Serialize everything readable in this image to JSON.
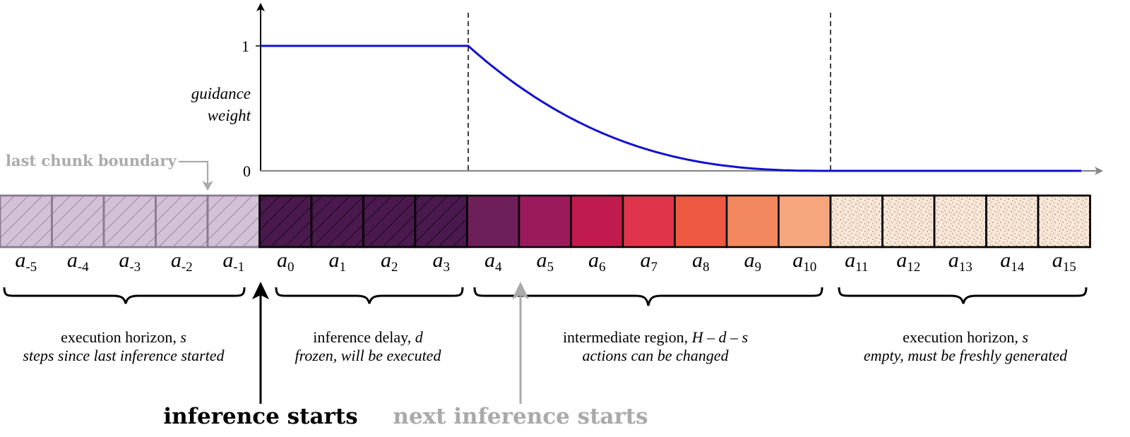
{
  "axis": {
    "y_tick_top": "1",
    "y_tick_bottom": "0",
    "ylabel_line1": "guidance",
    "ylabel_line2": "weight"
  },
  "chart_data": {
    "type": "line",
    "series": [
      {
        "segments": [
          {
            "from_index": 0,
            "to_index": 4,
            "value": 1
          },
          {
            "from_index": 4,
            "to_index": 11,
            "shape": "exponential decay to 0"
          },
          {
            "from_index": 11,
            "to_index": 16,
            "value": 0
          }
        ]
      }
    ],
    "ylim": [
      0,
      1
    ]
  },
  "callout": {
    "last_chunk_boundary": "last chunk boundary"
  },
  "actions": [
    {
      "base": "a",
      "sub": "-5"
    },
    {
      "base": "a",
      "sub": "-4"
    },
    {
      "base": "a",
      "sub": "-3"
    },
    {
      "base": "a",
      "sub": "-2"
    },
    {
      "base": "a",
      "sub": "-1"
    },
    {
      "base": "a",
      "sub": "0"
    },
    {
      "base": "a",
      "sub": "1"
    },
    {
      "base": "a",
      "sub": "2"
    },
    {
      "base": "a",
      "sub": "3"
    },
    {
      "base": "a",
      "sub": "4"
    },
    {
      "base": "a",
      "sub": "5"
    },
    {
      "base": "a",
      "sub": "6"
    },
    {
      "base": "a",
      "sub": "7"
    },
    {
      "base": "a",
      "sub": "8"
    },
    {
      "base": "a",
      "sub": "9"
    },
    {
      "base": "a",
      "sub": "10"
    },
    {
      "base": "a",
      "sub": "11"
    },
    {
      "base": "a",
      "sub": "12"
    },
    {
      "base": "a",
      "sub": "13"
    },
    {
      "base": "a",
      "sub": "14"
    },
    {
      "base": "a",
      "sub": "15"
    }
  ],
  "cell_colors": {
    "past": "#d2c1d7",
    "past_border": "#877a8c",
    "frozen": "#4a1a4e",
    "gradient": [
      "#6e1f5a",
      "#9a1a5c",
      "#c11a4f",
      "#e0344a",
      "#ee5943",
      "#f3875d",
      "#f5a67d"
    ],
    "empty": "#fbe7d6"
  },
  "regions": [
    {
      "title": "execution horizon, ",
      "title_var": "s",
      "subtitle": "steps since last inference started"
    },
    {
      "title": "inference delay, ",
      "title_var": "d",
      "subtitle": "frozen, will be executed"
    },
    {
      "title": "intermediate region, ",
      "title_var": "H – d – s",
      "subtitle": "actions can be changed"
    },
    {
      "title": "execution horizon, ",
      "title_var": "s",
      "subtitle": "empty, must be freshly generated"
    }
  ],
  "markers": {
    "inference_starts": "inference starts",
    "next_inference_starts": "next inference starts"
  },
  "colors": {
    "curve": "#1010d0",
    "axis": "#888888",
    "gray_text": "#aaaaaa",
    "black": "#000000"
  }
}
